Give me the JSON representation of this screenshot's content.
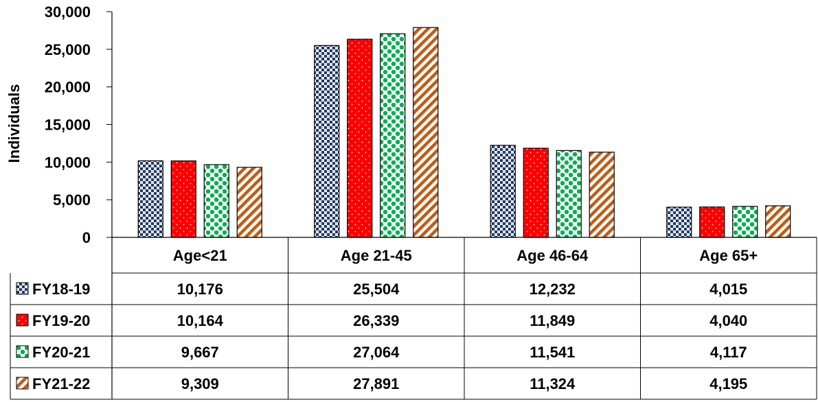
{
  "chart_data": {
    "type": "bar",
    "title": "",
    "xlabel": "",
    "ylabel": "Individuals",
    "ylim": [
      0,
      30000
    ],
    "yticks": [
      "0",
      "5,000",
      "10,000",
      "15,000",
      "20,000",
      "25,000",
      "30,000"
    ],
    "categories": [
      "Age<21",
      "Age 21-45",
      "Age 46-64",
      "Age 65+"
    ],
    "legend_placement": "data-table",
    "grid": false,
    "series": [
      {
        "name": "FY18-19",
        "values": [
          10176,
          25504,
          12232,
          4015
        ],
        "labels": [
          "10,176",
          "25,504",
          "12,232",
          "4,015"
        ],
        "pattern": "checker-navy"
      },
      {
        "name": "FY19-20",
        "values": [
          10164,
          26339,
          11849,
          4040
        ],
        "labels": [
          "10,164",
          "26,339",
          "11,849",
          "4,040"
        ],
        "pattern": "dots-red"
      },
      {
        "name": "FY20-21",
        "values": [
          9667,
          27064,
          11541,
          4117
        ],
        "labels": [
          "9,667",
          "27,064",
          "11,541",
          "4,117"
        ],
        "pattern": "diamonds-green"
      },
      {
        "name": "FY21-22",
        "values": [
          9309,
          27891,
          11324,
          4195
        ],
        "labels": [
          "9,309",
          "27,891",
          "11,324",
          "4,195"
        ],
        "pattern": "stripes-orange"
      }
    ]
  },
  "colors": {
    "navy": "#1f3864",
    "red": "#ff0000",
    "green": "#00b050",
    "orange": "#c55a11"
  }
}
